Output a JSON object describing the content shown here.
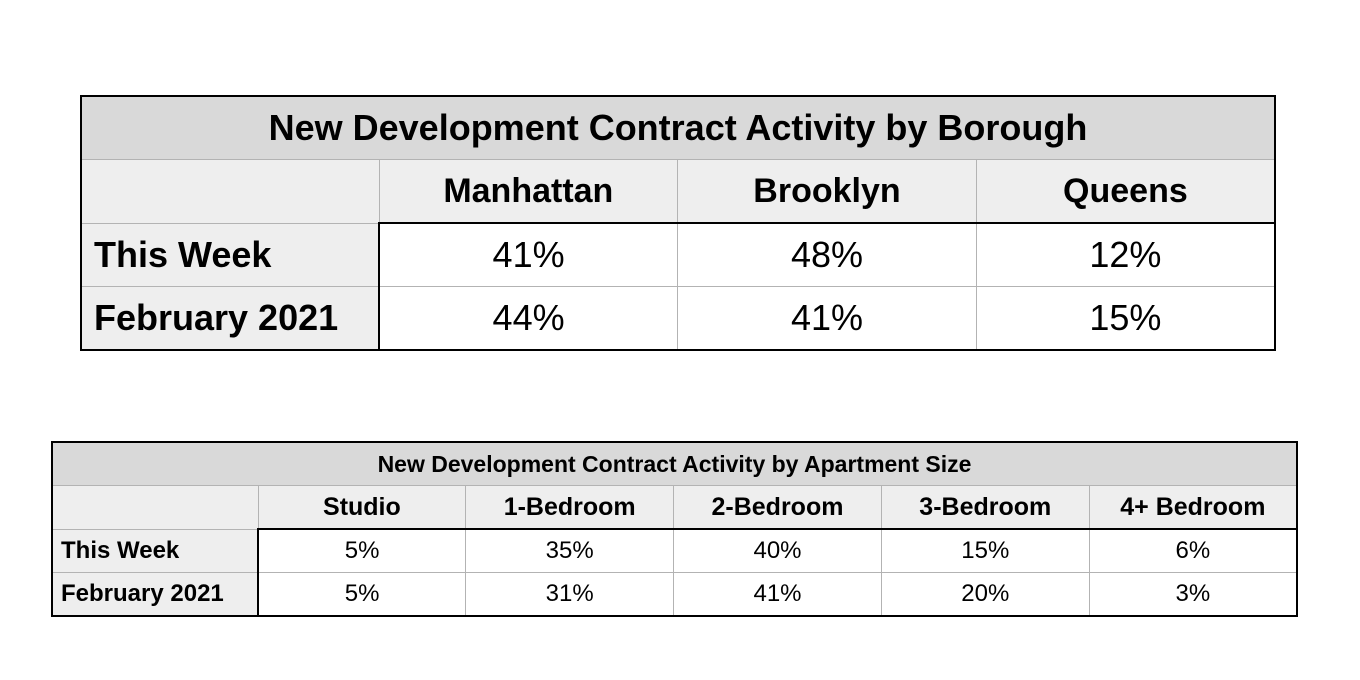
{
  "chart_data": [
    {
      "type": "table",
      "title": "New Development Contract Activity by Borough",
      "columns": [
        "Manhattan",
        "Brooklyn",
        "Queens"
      ],
      "rows": [
        {
          "label": "This Week",
          "values": [
            "41%",
            "48%",
            "12%"
          ]
        },
        {
          "label": "February 2021",
          "values": [
            "44%",
            "41%",
            "15%"
          ]
        }
      ]
    },
    {
      "type": "table",
      "title": "New Development Contract Activity by Apartment Size",
      "columns": [
        "Studio",
        "1-Bedroom",
        "2-Bedroom",
        "3-Bedroom",
        "4+ Bedroom"
      ],
      "rows": [
        {
          "label": "This Week",
          "values": [
            "5%",
            "35%",
            "40%",
            "15%",
            "6%"
          ]
        },
        {
          "label": "February 2021",
          "values": [
            "5%",
            "31%",
            "41%",
            "20%",
            "3%"
          ]
        }
      ]
    }
  ],
  "colors": {
    "title_background": "#d9d9d9",
    "header_background": "#eeeeee",
    "cell_background": "#ffffff",
    "border": "#000000",
    "gridline": "#b3b3b3"
  }
}
